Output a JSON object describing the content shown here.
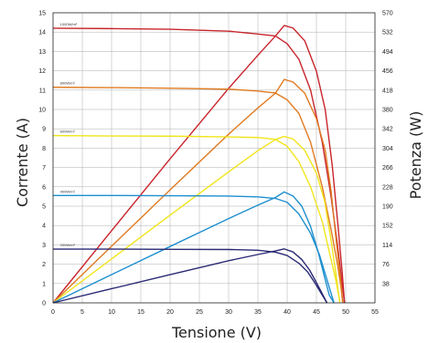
{
  "chart_data": {
    "type": "line",
    "xlabel": "Tensione (V)",
    "ylabel_left": "Corrente (A)",
    "ylabel_right": "Potenza (W)",
    "xlim": [
      0,
      55
    ],
    "ylim_left": [
      0,
      15
    ],
    "ylim_right": [
      0,
      570
    ],
    "x_ticks": [
      "0",
      "5",
      "10",
      "15",
      "20",
      "25",
      "30",
      "35",
      "40",
      "45",
      "50",
      "55"
    ],
    "y_left_ticks": [
      "1",
      "2",
      "3",
      "4",
      "5",
      "6",
      "7",
      "8",
      "9",
      "10",
      "11",
      "12",
      "13",
      "14",
      "15"
    ],
    "y_right_ticks": [
      "38",
      "76",
      "114",
      "152",
      "190",
      "228",
      "266",
      "304",
      "342",
      "380",
      "418",
      "456",
      "494",
      "532",
      "570"
    ],
    "grid": true,
    "series": [
      {
        "name": "1000W/m²",
        "color": "#c8252c",
        "iv_color": "#c8252c",
        "pv_color": "#c8252c",
        "isc": 14.2,
        "voc": 49.8,
        "imp": 13.8,
        "vmp": 39.5,
        "pmax": 545,
        "iv_curve": [
          [
            0,
            14.2
          ],
          [
            10,
            14.18
          ],
          [
            20,
            14.15
          ],
          [
            30,
            14.05
          ],
          [
            35,
            13.9
          ],
          [
            38,
            13.8
          ],
          [
            40,
            13.4
          ],
          [
            42,
            12.6
          ],
          [
            44,
            11.0
          ],
          [
            46,
            8.3
          ],
          [
            47.5,
            5.5
          ],
          [
            48.6,
            3.0
          ],
          [
            49.3,
            1.2
          ],
          [
            49.8,
            0
          ]
        ],
        "pv_curve": [
          [
            0,
            0
          ],
          [
            10,
            141.8
          ],
          [
            20,
            283
          ],
          [
            30,
            421.5
          ],
          [
            35,
            486.5
          ],
          [
            38,
            524.4
          ],
          [
            39.5,
            545
          ],
          [
            41,
            540
          ],
          [
            43,
            515
          ],
          [
            45,
            455
          ],
          [
            46.5,
            380
          ],
          [
            47.7,
            270
          ],
          [
            48.7,
            150
          ],
          [
            49.4,
            60
          ],
          [
            49.8,
            0
          ]
        ]
      },
      {
        "name": "800W/m²",
        "color": "#e07b22",
        "iv_color": "#e07b22",
        "pv_color": "#e07b22",
        "isc": 11.15,
        "voc": 49.5,
        "imp": 10.9,
        "vmp": 39.5,
        "pmax": 439,
        "iv_curve": [
          [
            0,
            11.15
          ],
          [
            10,
            11.13
          ],
          [
            20,
            11.1
          ],
          [
            30,
            11.05
          ],
          [
            35,
            10.95
          ],
          [
            38,
            10.85
          ],
          [
            40,
            10.5
          ],
          [
            42,
            9.8
          ],
          [
            44,
            8.3
          ],
          [
            46,
            6.0
          ],
          [
            47.5,
            3.8
          ],
          [
            48.6,
            2.0
          ],
          [
            49.2,
            0.8
          ],
          [
            49.5,
            0
          ]
        ],
        "pv_curve": [
          [
            0,
            0
          ],
          [
            10,
            111.3
          ],
          [
            20,
            222
          ],
          [
            30,
            331.5
          ],
          [
            35,
            383
          ],
          [
            38,
            412
          ],
          [
            39.5,
            439
          ],
          [
            41,
            434
          ],
          [
            43,
            412
          ],
          [
            45,
            362
          ],
          [
            46.5,
            300
          ],
          [
            47.5,
            220
          ],
          [
            48.4,
            120
          ],
          [
            49.1,
            50
          ],
          [
            49.5,
            0
          ]
        ]
      },
      {
        "name": "600W/m²",
        "color": "#f1e51c",
        "iv_color": "#f1e51c",
        "pv_color": "#f1e51c",
        "isc": 8.65,
        "voc": 49.0,
        "imp": 8.3,
        "vmp": 39.5,
        "pmax": 327,
        "iv_curve": [
          [
            0,
            8.65
          ],
          [
            10,
            8.63
          ],
          [
            20,
            8.62
          ],
          [
            30,
            8.58
          ],
          [
            35,
            8.55
          ],
          [
            38,
            8.45
          ],
          [
            40,
            8.1
          ],
          [
            42,
            7.3
          ],
          [
            44,
            6.0
          ],
          [
            46,
            4.2
          ],
          [
            47.3,
            2.5
          ],
          [
            48.3,
            1.2
          ],
          [
            48.8,
            0.4
          ],
          [
            49.0,
            0
          ]
        ],
        "pv_curve": [
          [
            0,
            0
          ],
          [
            10,
            86.3
          ],
          [
            20,
            172.4
          ],
          [
            30,
            257.4
          ],
          [
            35,
            299
          ],
          [
            38,
            321
          ],
          [
            39.5,
            327
          ],
          [
            41,
            322
          ],
          [
            43,
            300
          ],
          [
            45,
            255
          ],
          [
            46.4,
            200
          ],
          [
            47.4,
            130
          ],
          [
            48.3,
            60
          ],
          [
            49.0,
            0
          ]
        ]
      },
      {
        "name": "400W/m²",
        "color": "#1e8fcf",
        "iv_color": "#1e8fcf",
        "pv_color": "#1e8fcf",
        "isc": 5.55,
        "voc": 48.0,
        "imp": 5.5,
        "vmp": 39.5,
        "pmax": 218,
        "iv_curve": [
          [
            0,
            5.55
          ],
          [
            10,
            5.55
          ],
          [
            20,
            5.54
          ],
          [
            30,
            5.52
          ],
          [
            35,
            5.48
          ],
          [
            38,
            5.4
          ],
          [
            40,
            5.2
          ],
          [
            42,
            4.6
          ],
          [
            44,
            3.6
          ],
          [
            45.5,
            2.5
          ],
          [
            46.6,
            1.4
          ],
          [
            47.4,
            0.6
          ],
          [
            48.0,
            0
          ]
        ],
        "pv_curve": [
          [
            0,
            0
          ],
          [
            10,
            55.5
          ],
          [
            20,
            110.8
          ],
          [
            30,
            165.6
          ],
          [
            35,
            192
          ],
          [
            38,
            207
          ],
          [
            39.5,
            218
          ],
          [
            41,
            210
          ],
          [
            42.5,
            190
          ],
          [
            44,
            150
          ],
          [
            45.3,
            100
          ],
          [
            46.4,
            50
          ],
          [
            47.2,
            15
          ],
          [
            48.0,
            0
          ]
        ]
      },
      {
        "name": "200W/m²",
        "color": "#2a2a75",
        "iv_color": "#2a2a75",
        "pv_color": "#2a2a75",
        "isc": 2.78,
        "voc": 46.8,
        "imp": 2.7,
        "vmp": 39.5,
        "pmax": 106,
        "iv_curve": [
          [
            0,
            2.78
          ],
          [
            10,
            2.78
          ],
          [
            20,
            2.77
          ],
          [
            30,
            2.76
          ],
          [
            35,
            2.72
          ],
          [
            38,
            2.62
          ],
          [
            40,
            2.45
          ],
          [
            42,
            2.05
          ],
          [
            43.5,
            1.6
          ],
          [
            44.8,
            1.0
          ],
          [
            45.8,
            0.5
          ],
          [
            46.8,
            0
          ]
        ],
        "pv_curve": [
          [
            0,
            0
          ],
          [
            10,
            27.8
          ],
          [
            20,
            55.4
          ],
          [
            30,
            82.8
          ],
          [
            35,
            95
          ],
          [
            38,
            102
          ],
          [
            39.5,
            106
          ],
          [
            41,
            100
          ],
          [
            42.5,
            85
          ],
          [
            43.8,
            65
          ],
          [
            44.9,
            42
          ],
          [
            45.9,
            20
          ],
          [
            46.8,
            0
          ]
        ]
      }
    ]
  }
}
